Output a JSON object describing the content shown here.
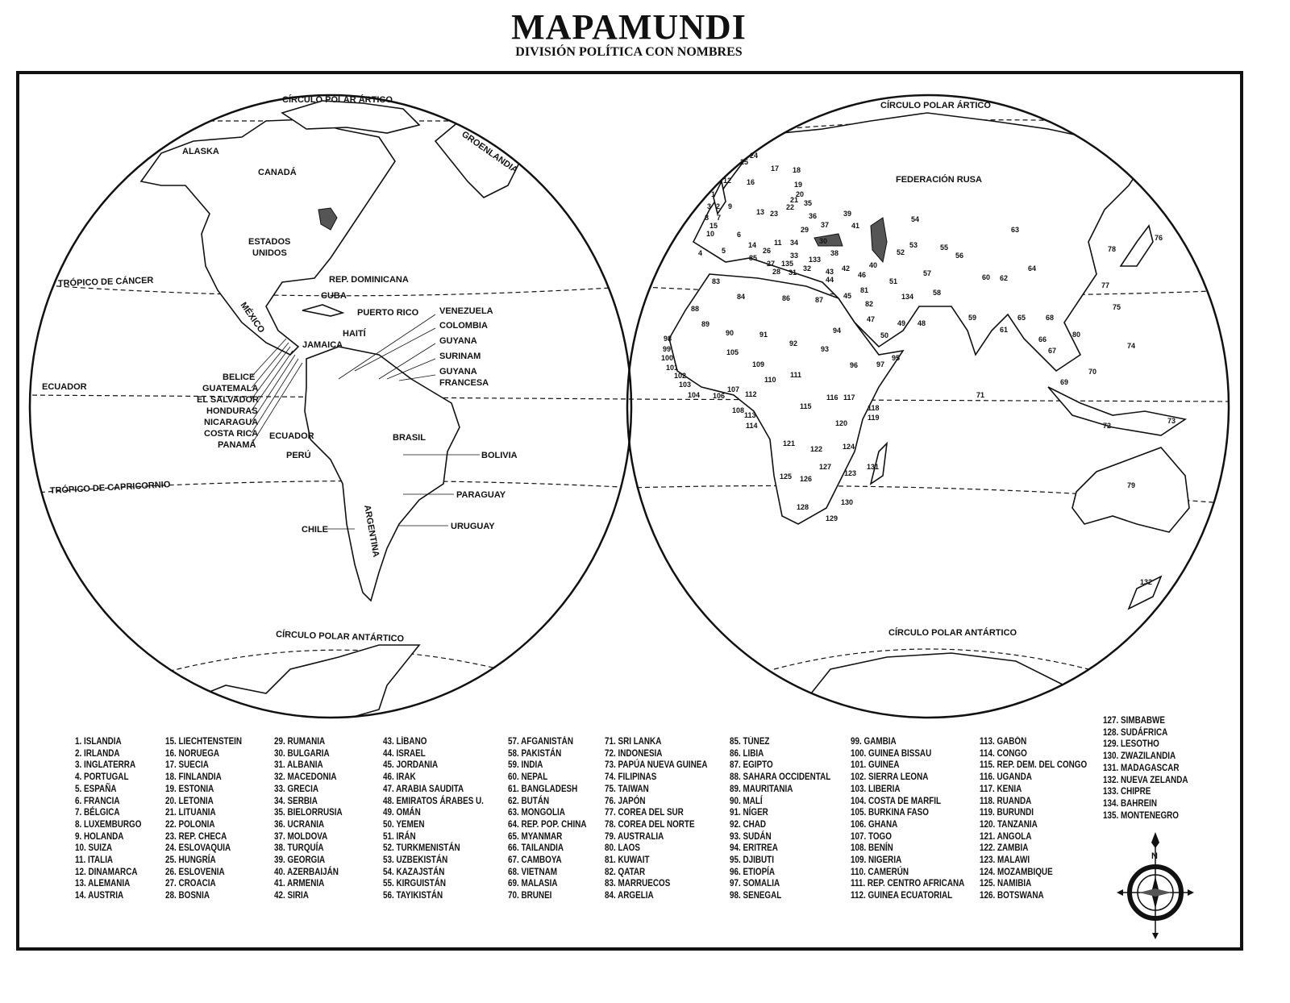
{
  "title": "MAPAMUNDI",
  "subtitle": "DIVISIÓN POLÍTICA CON NOMBRES",
  "left_hemisphere": {
    "labels": {
      "arctic": "CÍRCULO POLAR ÁRTICO",
      "alaska": "ALASKA",
      "canada": "CANADÁ",
      "greenland": "GROENLANDIA",
      "usa_1": "ESTADOS",
      "usa_2": "UNIDOS",
      "cancer": "TRÓPICO DE CÁNCER",
      "dominican": "REP. DOMINICANA",
      "cuba": "CUBA",
      "puerto_rico": "PUERTO RICO",
      "venezuela": "VENEZUELA",
      "colombia": "COLOMBIA",
      "guyana": "GUYANA",
      "surinam": "SURINAM",
      "french_guiana_1": "GUYANA",
      "french_guiana_2": "FRANCESA",
      "mexico": "MÉXICO",
      "haiti": "HAITÍ",
      "jamaica": "JAMAICA",
      "equator": "ECUADOR",
      "belize": "BELICE",
      "guatemala": "GUATEMALA",
      "el_salvador": "EL SALVADOR",
      "honduras": "HONDURAS",
      "nicaragua": "NICARAGUA",
      "costa_rica": "COSTA RICA",
      "panama": "PANAMÁ",
      "ecuador": "ECUADOR",
      "brazil": "BRASIL",
      "peru": "PERÚ",
      "bolivia": "BOLIVIA",
      "capricorn": "TRÓPICO DE CAPRICORNIO",
      "paraguay": "PARAGUAY",
      "argentina": "ARGENTINA",
      "chile": "CHILE",
      "uruguay": "URUGUAY",
      "antarctic": "CÍRCULO POLAR ANTÁRTICO"
    }
  },
  "right_hemisphere": {
    "labels": {
      "arctic": "CÍRCULO POLAR ÁRTICO",
      "russia": "FEDERACIÓN RUSA",
      "antarctic": "CÍRCULO POLAR ANTÁRTICO"
    }
  },
  "compass": {
    "north": "N"
  },
  "legend": [
    [
      "1. ISLANDIA",
      "2. IRLANDA",
      "3. INGLATERRA",
      "4. PORTUGAL",
      "5. ESPAÑA",
      "6. FRANCIA",
      "7. BÉLGICA",
      "8. LUXEMBURGO",
      "9. HOLANDA",
      "10. SUIZA",
      "11. ITALIA",
      "12. DINAMARCA",
      "13. ALEMANIA",
      "14. AUSTRIA"
    ],
    [
      "15. LIECHTENSTEIN",
      "16. NORUEGA",
      "17. SUECIA",
      "18. FINLANDIA",
      "19. ESTONIA",
      "20. LETONIA",
      "21. LITUANIA",
      "22. POLONIA",
      "23. REP. CHECA",
      "24. ESLOVAQUIA",
      "25. HUNGRÍA",
      "26. ESLOVENIA",
      "27. CROACIA",
      "28. BOSNIA"
    ],
    [
      "29. RUMANIA",
      "30. BULGARIA",
      "31. ALBANIA",
      "32. MACEDONIA",
      "33. GRECIA",
      "34. SERBIA",
      "35. BIELORRUSIA",
      "36. UCRANIA",
      "37. MOLDOVA",
      "38. TURQUÍA",
      "39. GEORGIA",
      "40. AZERBAIJÁN",
      "41. ARMENIA",
      "42. SIRIA"
    ],
    [
      "43. LÍBANO",
      "44. ISRAEL",
      "45. JORDANIA",
      "46. IRAK",
      "47. ARABIA SAUDITA",
      "48. EMIRATOS ÁRABES U.",
      "49. OMÁN",
      "50. YEMEN",
      "51. IRÁN",
      "52. TURKMENISTÁN",
      "53. UZBEKISTÁN",
      "54. KAZAJSTÁN",
      "55. KIRGUISTÁN",
      "56. TAYIKISTÁN"
    ],
    [
      "57. AFGANISTÁN",
      "58. PAKISTÁN",
      "59. INDIA",
      "60. NEPAL",
      "61. BANGLADESH",
      "62. BUTÁN",
      "63. MONGOLIA",
      "64. REP. POP. CHINA",
      "65. MYANMAR",
      "66. TAILANDIA",
      "67. CAMBOYA",
      "68. VIETNAM",
      "69. MALASIA",
      "70. BRUNEI"
    ],
    [
      "71. SRI LANKA",
      "72. INDONESIA",
      "73. PAPÚA NUEVA GUINEA",
      "74. FILIPINAS",
      "75. TAIWAN",
      "76. JAPÓN",
      "77. COREA DEL SUR",
      "78. COREA DEL NORTE",
      "79. AUSTRALIA",
      "80. LAOS",
      "81. KUWAIT",
      "82. QATAR",
      "83. MARRUECOS",
      "84. ARGELIA"
    ],
    [
      "85. TÚNEZ",
      "86. LIBIA",
      "87. EGIPTO",
      "88. SAHARA OCCIDENTAL",
      "89. MAURITANIA",
      "90. MALÍ",
      "91. NÍGER",
      "92. CHAD",
      "93. SUDÁN",
      "94. ERITREA",
      "95. DJIBUTI",
      "96. ETIOPÍA",
      "97. SOMALIA",
      "98. SENEGAL"
    ],
    [
      "99. GAMBIA",
      "100. GUINEA BISSAU",
      "101. GUINEA",
      "102. SIERRA LEONA",
      "103. LIBERIA",
      "104. COSTA DE MARFIL",
      "105. BURKINA FASO",
      "106. GHANA",
      "107. TOGO",
      "108. BENÍN",
      "109. NIGERIA",
      "110. CAMERÚN",
      "111. REP. CENTRO AFRICANA",
      "112. GUINEA ECUATORIAL"
    ],
    [
      "113. GABÓN",
      "114. CONGO",
      "115. REP. DEM. DEL CONGO",
      "116. UGANDA",
      "117. KENIA",
      "118. RUANDA",
      "119. BURUNDI",
      "120. TANZANIA",
      "121. ANGOLA",
      "122. ZAMBIA",
      "123. MALAWI",
      "124. MOZAMBIQUE",
      "125. NAMIBIA",
      "126. BOTSWANA"
    ],
    [
      "127. SIMBABWE",
      "128. SUDÁFRICA",
      "129. LESOTHO",
      "130. ZWAZILANDIA",
      "131. MADAGASCAR",
      "132. NUEVA ZELANDA",
      "133. CHIPRE",
      "134. BAHREIN",
      "135. MONTENEGRO"
    ]
  ],
  "map_numbers": [
    "24",
    "25",
    "17",
    "18",
    "12",
    "16",
    "19",
    "20",
    "21",
    "1",
    "9",
    "2",
    "13",
    "22",
    "35",
    "7",
    "8",
    "15",
    "6",
    "10",
    "36",
    "37",
    "29",
    "39",
    "41",
    "11",
    "34",
    "5",
    "4",
    "14",
    "26",
    "85",
    "30",
    "38",
    "52",
    "53",
    "55",
    "56",
    "54",
    "63",
    "64",
    "78",
    "76",
    "77",
    "75",
    "57",
    "51",
    "58",
    "42",
    "43",
    "44",
    "46",
    "40",
    "133",
    "31",
    "32",
    "135",
    "27",
    "28",
    "134",
    "81",
    "82",
    "45",
    "87",
    "86",
    "84",
    "83",
    "88",
    "89",
    "90",
    "91",
    "92",
    "93",
    "94",
    "47",
    "49",
    "48",
    "50",
    "95",
    "96",
    "97",
    "59",
    "60",
    "62",
    "61",
    "65",
    "66",
    "68",
    "80",
    "67",
    "74",
    "69",
    "70",
    "71",
    "72",
    "73",
    "79",
    "132",
    "98",
    "99",
    "100",
    "101",
    "102",
    "103",
    "104",
    "105",
    "106",
    "107",
    "108",
    "109",
    "110",
    "111",
    "112",
    "113",
    "114",
    "115",
    "116",
    "117",
    "118",
    "119",
    "120",
    "121",
    "122",
    "123",
    "124",
    "125",
    "126",
    "127",
    "128",
    "129",
    "130",
    "131",
    "23",
    "33",
    "3"
  ],
  "colors": {
    "ink": "#111111",
    "paper": "#ffffff",
    "highlight": "#555555"
  }
}
